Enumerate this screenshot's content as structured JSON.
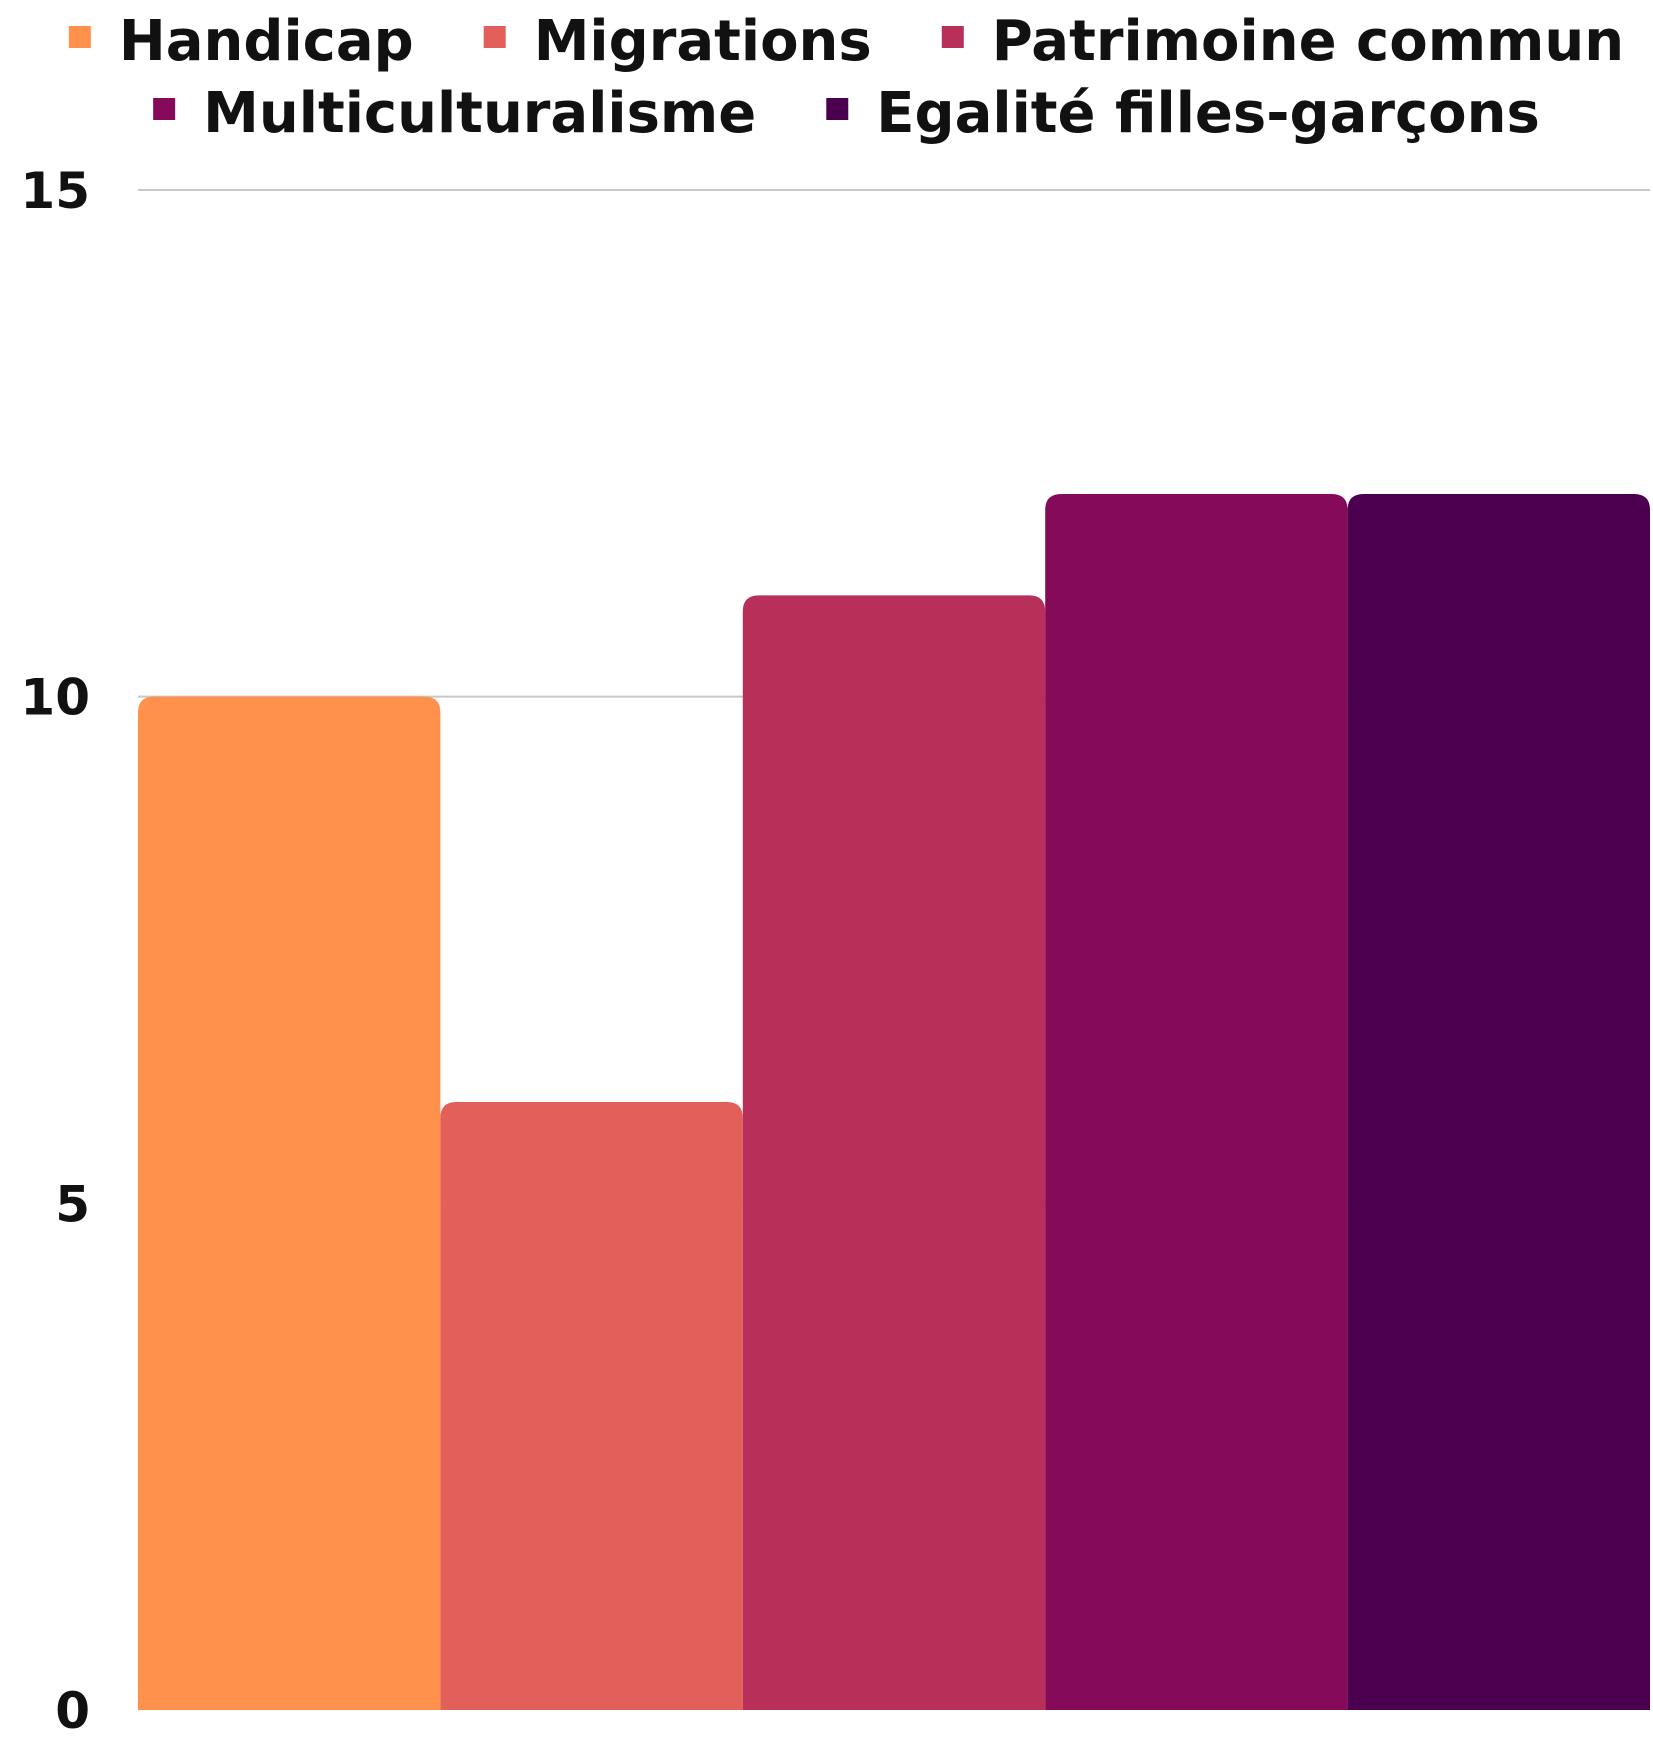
{
  "chart_data": {
    "type": "bar",
    "title": "",
    "xlabel": "",
    "ylabel": "",
    "ylim": [
      0,
      15
    ],
    "yticks": [
      0,
      5,
      10,
      15
    ],
    "grid": true,
    "legend_position": "top",
    "series": [
      {
        "name": "Handicap",
        "value": 10,
        "color": "#FF914D"
      },
      {
        "name": "Migrations",
        "value": 6,
        "color": "#E35F5A"
      },
      {
        "name": "Patrimoine commun",
        "value": 11,
        "color": "#B82F5A"
      },
      {
        "name": "Multiculturalisme",
        "value": 12,
        "color": "#850A5A"
      },
      {
        "name": "Egalité filles-garçons",
        "value": 12,
        "color": "#4B004F"
      }
    ]
  }
}
